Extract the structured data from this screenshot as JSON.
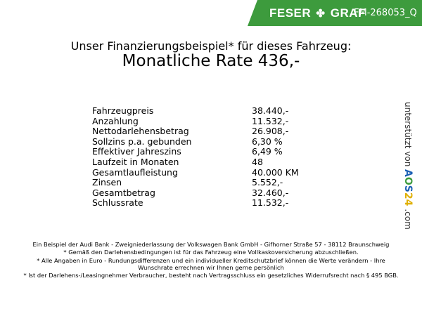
{
  "header": {
    "brand_left": "FESER",
    "brand_right": "GRAF",
    "code": "FM-268053_Q",
    "brand_color": "#3d9b3d"
  },
  "title": "Unser Finanzierungsbeispiel* für dieses Fahrzeug:",
  "rate": "Monatliche Rate 436,-",
  "rows": [
    {
      "label": "Fahrzeugpreis",
      "value": "38.440,-"
    },
    {
      "label": "Anzahlung",
      "value": "11.532,-"
    },
    {
      "label": "Nettodarlehensbetrag",
      "value": "26.908,-"
    },
    {
      "label": "Sollzins p.a. gebunden",
      "value": "6,30 %"
    },
    {
      "label": "Effektiver Jahreszins",
      "value": "6,49 %"
    },
    {
      "label": "Laufzeit in Monaten",
      "value": "48"
    },
    {
      "label": "Gesamtlaufleistung",
      "value": "40.000 KM"
    },
    {
      "label": "Zinsen",
      "value": "5.552,-"
    },
    {
      "label": "Gesamtbetrag",
      "value": "32.460,-"
    },
    {
      "label": "Schlussrate",
      "value": "11.532,-"
    }
  ],
  "side": {
    "text": "unterstützt von",
    "logo": "AOS24",
    ".com": ".com",
    "suffix": ".com"
  },
  "footer": [
    "Ein Beispiel der Audi Bank - Zweigniederlassung der Volkswagen Bank GmbH - Gifhorner Straße 57 - 38112 Braunschweig",
    "* Gemäß den Darlehensbedingungen ist für das Fahrzeug eine Vollkaskoversicherung abzuschließen.",
    "* Alle Angaben in Euro - Rundungsdifferenzen und ein individueller Kreditschutzbrief können die Werte verändern - Ihre Wunschrate errechnen wir Ihnen gerne persönlich",
    "* Ist der Darlehens-/Leasingnehmer Verbraucher, besteht nach Vertragsschluss ein gesetzliches Widerrufsrecht nach § 495 BGB."
  ]
}
